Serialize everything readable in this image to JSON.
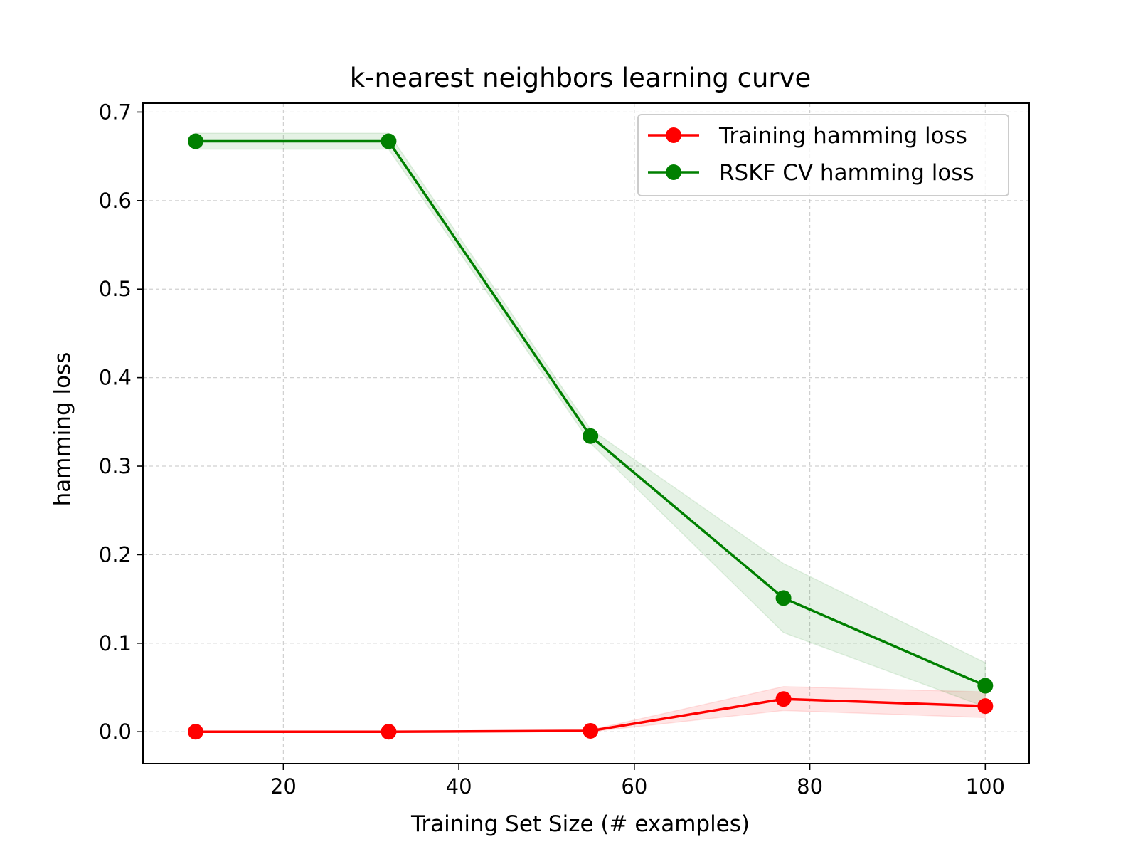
{
  "chart_data": {
    "type": "line",
    "title": "k-nearest neighbors learning curve",
    "xlabel": "Training Set Size (# examples)",
    "ylabel": "hamming loss",
    "xlim": [
      4,
      105
    ],
    "ylim": [
      -0.036,
      0.71
    ],
    "xticks": [
      20,
      40,
      60,
      80,
      100
    ],
    "xtick_labels": [
      "20",
      "40",
      "60",
      "80",
      "100"
    ],
    "yticks": [
      0.0,
      0.1,
      0.2,
      0.3,
      0.4,
      0.5,
      0.6,
      0.7
    ],
    "ytick_labels": [
      "0.0",
      "0.1",
      "0.2",
      "0.3",
      "0.4",
      "0.5",
      "0.6",
      "0.7"
    ],
    "grid": true,
    "legend_position": "upper-right",
    "x": [
      10,
      32,
      55,
      77,
      100
    ],
    "series": [
      {
        "name": "Training hamming loss",
        "color": "#ff0000",
        "values": [
          0.0,
          0.0,
          0.001,
          0.037,
          0.029
        ],
        "band_lower": [
          0.0,
          0.0,
          0.0,
          0.024,
          0.016
        ],
        "band_upper": [
          0.0,
          0.0,
          0.002,
          0.051,
          0.045
        ]
      },
      {
        "name": "RSKF CV hamming loss",
        "color": "#008000",
        "values": [
          0.667,
          0.667,
          0.334,
          0.151,
          0.052
        ],
        "band_lower": [
          0.658,
          0.658,
          0.326,
          0.112,
          0.028
        ],
        "band_upper": [
          0.676,
          0.676,
          0.342,
          0.19,
          0.078
        ]
      }
    ]
  }
}
